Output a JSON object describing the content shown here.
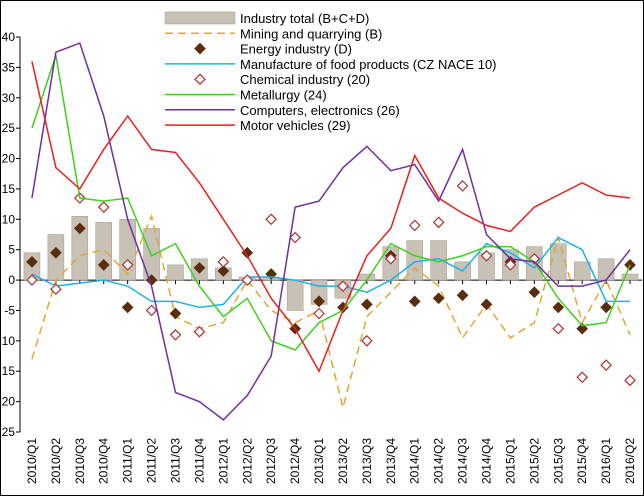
{
  "chart_data": {
    "type": "line",
    "categories": [
      "2010/Q1",
      "2010/Q2",
      "2010/Q3",
      "2010/Q4",
      "2011/Q1",
      "2011/Q2",
      "2011/Q3",
      "2011/Q4",
      "2012/Q1",
      "2012/Q2",
      "2012/Q3",
      "2012/Q4",
      "2013/Q1",
      "2013/Q2",
      "2013/Q3",
      "2013/Q4",
      "2014/Q1",
      "2014/Q2",
      "2014/Q3",
      "2014/Q4",
      "2015/Q1",
      "2015/Q2",
      "2015/Q3",
      "2015/Q4",
      "2016/Q1",
      "2016/Q2"
    ],
    "ylim": [
      -25,
      40
    ],
    "yticks": [
      -25,
      -20,
      -15,
      -10,
      -5,
      0,
      5,
      10,
      15,
      20,
      25,
      30,
      35,
      40
    ],
    "series": [
      {
        "name": "Industry total (B+C+D)",
        "type": "bar",
        "color": "#c8c1b6",
        "values": [
          4.5,
          7.5,
          10.5,
          9.5,
          10,
          8.5,
          2.5,
          3.5,
          2,
          0.5,
          0.5,
          -5,
          -4,
          -3,
          1,
          5.5,
          6.5,
          6.5,
          3,
          4.5,
          5,
          5.5,
          6,
          3,
          3.5,
          1
        ]
      },
      {
        "name": "Mining and quarrying  (B)",
        "type": "line",
        "dash": true,
        "color": "#e0a830",
        "values": [
          -13,
          0,
          4,
          5,
          1,
          10.5,
          -6,
          -8,
          -7,
          0,
          -5,
          -7,
          -5,
          -21,
          -6,
          -2,
          2,
          -1,
          -9.5,
          -4,
          -9.5,
          -7,
          7,
          -7,
          0,
          -9
        ]
      },
      {
        "name": "Energy industry (D)",
        "type": "scatter",
        "marker": "filled",
        "color": "#5a2d0c",
        "values": [
          3,
          4.5,
          8.5,
          2.5,
          -4.5,
          0,
          -5.5,
          2,
          1.5,
          4.5,
          1,
          -8,
          -3.5,
          -4.5,
          -4,
          4,
          -3.5,
          -3,
          -2.5,
          -4,
          3,
          -2,
          -4.5,
          -8,
          -4.5,
          2.5
        ]
      },
      {
        "name": "Manufacture of food products (CZ NACE 10)",
        "type": "line",
        "color": "#20b0e8",
        "values": [
          1,
          -1,
          -0.5,
          0,
          -1,
          -3.5,
          -3.5,
          -4.5,
          -4,
          0.5,
          0.5,
          0,
          -1,
          -1,
          -2,
          0,
          3,
          3.5,
          1.5,
          6,
          4.5,
          2,
          7,
          5,
          -3.5,
          -3.5
        ]
      },
      {
        "name": "Chemical industry (20)",
        "type": "scatter",
        "marker": "open",
        "color": "#b03030",
        "values": [
          0,
          -1.5,
          13.5,
          12,
          2.5,
          -5,
          -9,
          -8.5,
          3,
          0,
          10,
          7,
          -5.5,
          -1,
          -10,
          3.5,
          9,
          9.5,
          15.5,
          4,
          2.5,
          3.5,
          -8,
          -16,
          -14,
          -16.5
        ]
      },
      {
        "name": "Metallurgy (24)",
        "type": "line",
        "color": "#40d020",
        "values": [
          25,
          37,
          13.5,
          13,
          13.5,
          4,
          6,
          -1,
          -6,
          -3,
          -10,
          -11.5,
          -7,
          -5,
          0,
          6,
          4,
          3,
          4,
          5.5,
          5.5,
          3,
          -3,
          -7.5,
          -7,
          2.5
        ]
      },
      {
        "name": "Computers, electronics (26)",
        "type": "line",
        "color": "#7030a0",
        "values": [
          13.5,
          37.5,
          39,
          27,
          10,
          -1,
          -18.5,
          -20,
          -23,
          -19,
          -12.5,
          12,
          13,
          18.5,
          22,
          18,
          19,
          13,
          21.5,
          7.5,
          3.5,
          3,
          -1,
          -1,
          0,
          5
        ]
      },
      {
        "name": "Motor vehicles (29)",
        "type": "line",
        "color": "#e82020",
        "values": [
          36,
          18.5,
          15,
          21.5,
          27,
          21.5,
          21,
          16,
          10,
          4,
          -3,
          -8,
          -15,
          -5,
          4,
          8.5,
          20.5,
          13.5,
          11,
          9,
          8,
          12,
          14,
          16,
          14,
          13.5
        ]
      }
    ]
  }
}
